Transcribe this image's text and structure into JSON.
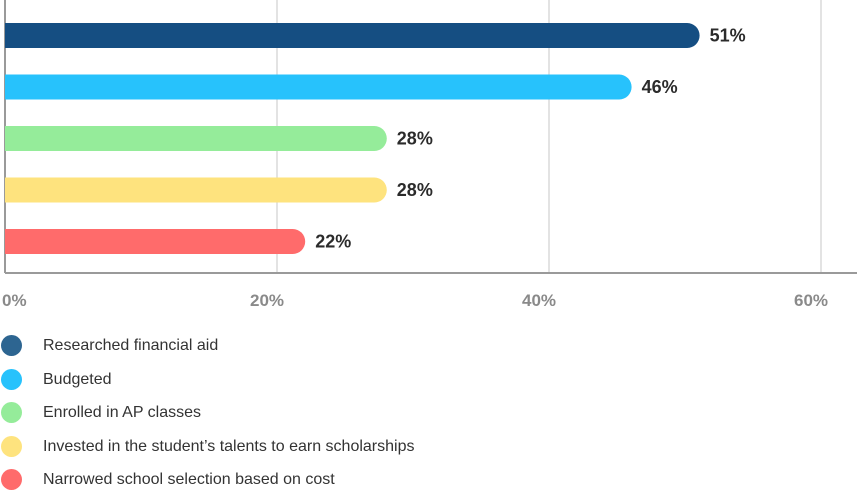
{
  "chart_data": {
    "type": "bar",
    "orientation": "horizontal",
    "categories": [
      "Researched financial aid",
      "Budgeted",
      "Enrolled in AP classes",
      "Invested in the student’s talents to earn scholarships",
      "Narrowed school selection based on cost"
    ],
    "values": [
      51,
      46,
      28,
      28,
      22
    ],
    "value_labels": [
      "51%",
      "46%",
      "28%",
      "28%",
      "22%"
    ],
    "colors": [
      "#154e82",
      "#27c2fc",
      "#95ec9a",
      "#fee37e",
      "#ff6b6b"
    ],
    "xlim": [
      0,
      60
    ],
    "x_ticks": [
      0,
      20,
      40,
      60
    ],
    "x_tick_labels": [
      "0%",
      "20%",
      "40%",
      "60%"
    ],
    "grid": true,
    "legend_placement": "bottom",
    "legend_marker_colors": [
      "#2d6591",
      "#27c2fc",
      "#95ec9a",
      "#fee37e",
      "#ff6b6b"
    ]
  }
}
